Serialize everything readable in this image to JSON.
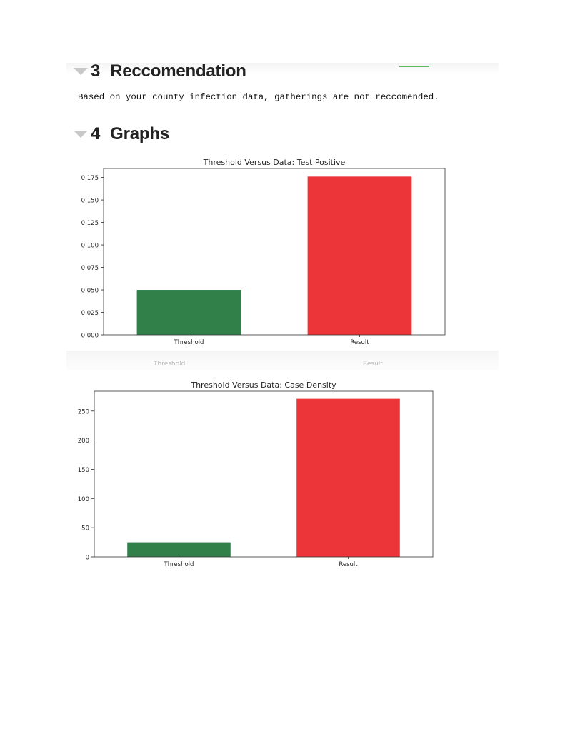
{
  "sections": {
    "recommendation": {
      "number": "3",
      "title": "Reccomendation",
      "text": "Based on your county infection data, gatherings are not reccomended."
    },
    "graphs": {
      "number": "4",
      "title": "Graphs"
    }
  },
  "ghost_labels": [
    "Threshold",
    "Result"
  ],
  "colors": {
    "threshold_bar": "#31804a",
    "result_bar": "#ec3539",
    "collapse_icon": "#c8c8c8"
  },
  "icons": {
    "collapse": "triangle-down-icon"
  },
  "chart_data": [
    {
      "type": "bar",
      "title": "Threshold Versus Data: Test Positive",
      "categories": [
        "Threshold",
        "Result"
      ],
      "values": [
        0.05,
        0.176
      ],
      "colors": [
        "#31804a",
        "#ec3539"
      ],
      "ylim": [
        0,
        0.185
      ],
      "yticks": [
        0,
        0.025,
        0.05,
        0.075,
        0.1,
        0.125,
        0.15,
        0.175
      ],
      "ytick_labels": [
        "0.000",
        "0.025",
        "0.050",
        "0.075",
        "0.100",
        "0.125",
        "0.150",
        "0.175"
      ],
      "xlabel": "",
      "ylabel": "",
      "grid": false,
      "legend": false
    },
    {
      "type": "bar",
      "title": "Threshold Versus Data: Case Density",
      "categories": [
        "Threshold",
        "Result"
      ],
      "values": [
        25,
        271
      ],
      "colors": [
        "#31804a",
        "#ec3539"
      ],
      "ylim": [
        0,
        284
      ],
      "yticks": [
        0,
        50,
        100,
        150,
        200,
        250
      ],
      "ytick_labels": [
        "0",
        "50",
        "100",
        "150",
        "200",
        "250"
      ],
      "xlabel": "",
      "ylabel": "",
      "grid": false,
      "legend": false
    }
  ]
}
